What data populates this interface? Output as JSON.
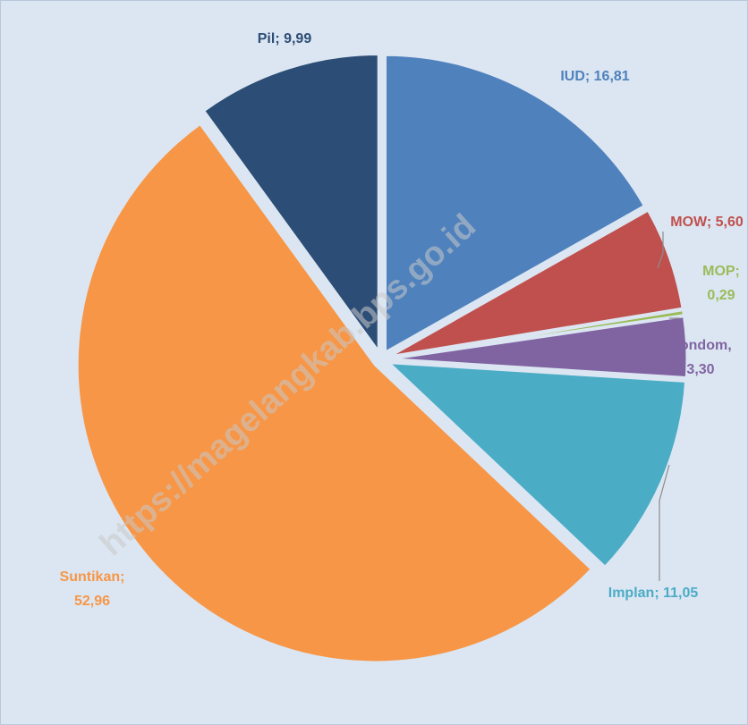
{
  "chart_data": {
    "type": "pie",
    "values": [
      16.81,
      5.6,
      0.29,
      3.3,
      11.05,
      52.96,
      9.99
    ],
    "value_labels": [
      [
        "IUD; 16,81"
      ],
      [
        "MOW; 5,60"
      ],
      [
        "MOP;",
        "0,29"
      ],
      [
        "Kondom,",
        "3,30"
      ],
      [
        "Implan; 11,05"
      ],
      [
        "Suntikan;",
        "52,96"
      ],
      [
        "Pil; 9,99"
      ]
    ],
    "colors": [
      "#4f81bd",
      "#c0504d",
      "#9bbb59",
      "#8064a2",
      "#4bacc6",
      "#f79646",
      "#2c4d75"
    ],
    "watermark": "https://magelangkab.bps.go.id"
  }
}
